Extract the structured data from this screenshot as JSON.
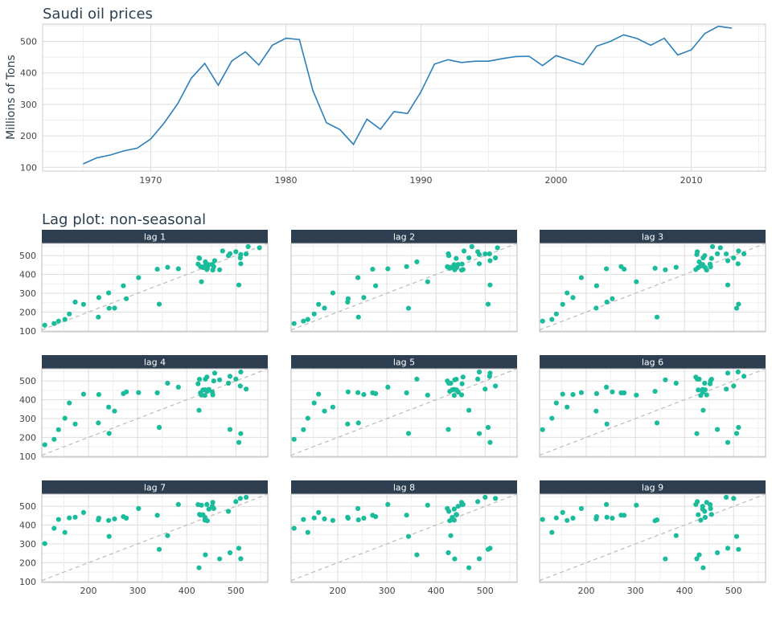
{
  "chart_data": [
    {
      "type": "line",
      "title": "Saudi oil prices",
      "xlabel": "",
      "ylabel": "Millions of Tons",
      "xlim": [
        1962,
        2015.5
      ],
      "ylim": [
        88,
        555
      ],
      "x_ticks": [
        1970,
        1980,
        1990,
        2000,
        2010
      ],
      "y_ticks": [
        100,
        200,
        300,
        400,
        500
      ],
      "grid": true,
      "color": "#2c7fb8",
      "series": [
        {
          "x": [
            1965,
            1966,
            1967,
            1968,
            1969,
            1970,
            1971,
            1972,
            1973,
            1974,
            1975,
            1976,
            1977,
            1978,
            1979,
            1980,
            1981,
            1982,
            1983,
            1984,
            1985,
            1986,
            1987,
            1988,
            1989,
            1990,
            1991,
            1992,
            1993,
            1994,
            1995,
            1996,
            1997,
            1998,
            1999,
            2000,
            2001,
            2002,
            2003,
            2004,
            2005,
            2006,
            2007,
            2008,
            2009,
            2010,
            2011,
            2012,
            2013
          ],
          "y": [
            111,
            130,
            139,
            152,
            161,
            190,
            241,
            302,
            383,
            430,
            361,
            438,
            467,
            425,
            488,
            510,
            506,
            344,
            242,
            220,
            173,
            253,
            221,
            277,
            271,
            340,
            428,
            442,
            433,
            437,
            437,
            445,
            452,
            453,
            423,
            455,
            441,
            426,
            485,
            500,
            521,
            509,
            488,
            510,
            457,
            473,
            525,
            548,
            542
          ]
        }
      ]
    },
    {
      "type": "scatter",
      "title": "Lag plot: non-seasonal",
      "facets": [
        "lag 1",
        "lag 2",
        "lag 3",
        "lag 4",
        "lag 5",
        "lag 6",
        "lag 7",
        "lag 8",
        "lag 9"
      ],
      "xlim": [
        105,
        565
      ],
      "ylim": [
        95,
        565
      ],
      "x_ticks": [
        200,
        300,
        400,
        500
      ],
      "y_ticks": [
        100,
        200,
        300,
        400,
        500
      ],
      "grid": true,
      "reference_line": "y = x",
      "point_color": "#1abc9c",
      "strip_color": "#2c3e50",
      "note": "Each facet lag k plots y(t) against y(t-k) of the series above; pairs are derived from the series values."
    }
  ]
}
